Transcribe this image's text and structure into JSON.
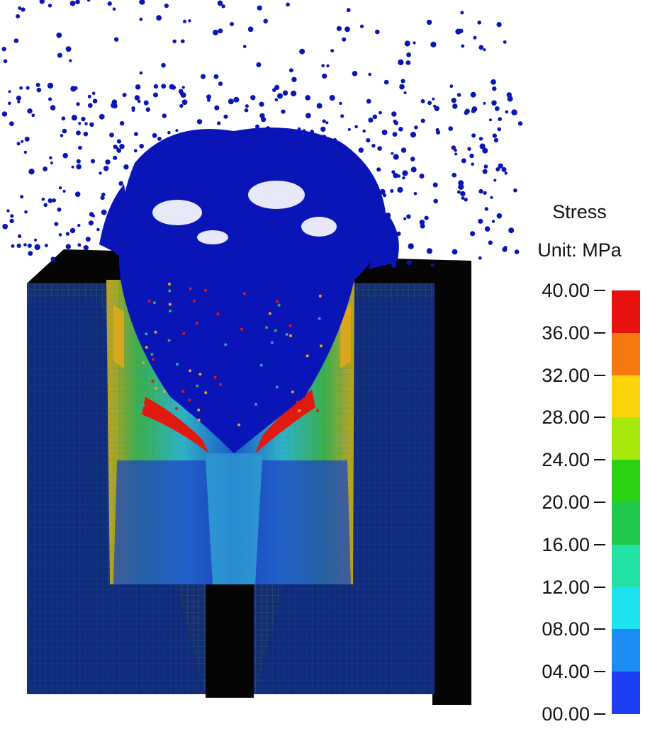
{
  "legend": {
    "title": "Stress",
    "unit": "Unit: MPa",
    "ticks": [
      "40.00",
      "36.00",
      "32.00",
      "28.00",
      "24.00",
      "20.00",
      "16.00",
      "12.00",
      "08.00",
      "04.00",
      "00.00"
    ],
    "colors_top_to_bottom": [
      "#e8120f",
      "#f5770d",
      "#fdd30b",
      "#a8e80d",
      "#2ad414",
      "#1ec84a",
      "#23e2a5",
      "#1ee3f3",
      "#1a8cf5",
      "#1d3df2"
    ]
  },
  "scene": {
    "palette": {
      "background": "#ffffff",
      "block_shadow": "#000000",
      "deep_blue": "#0a1b9c",
      "mesh_blue": "#14357e",
      "particle_blue": "#0a15b8"
    }
  }
}
